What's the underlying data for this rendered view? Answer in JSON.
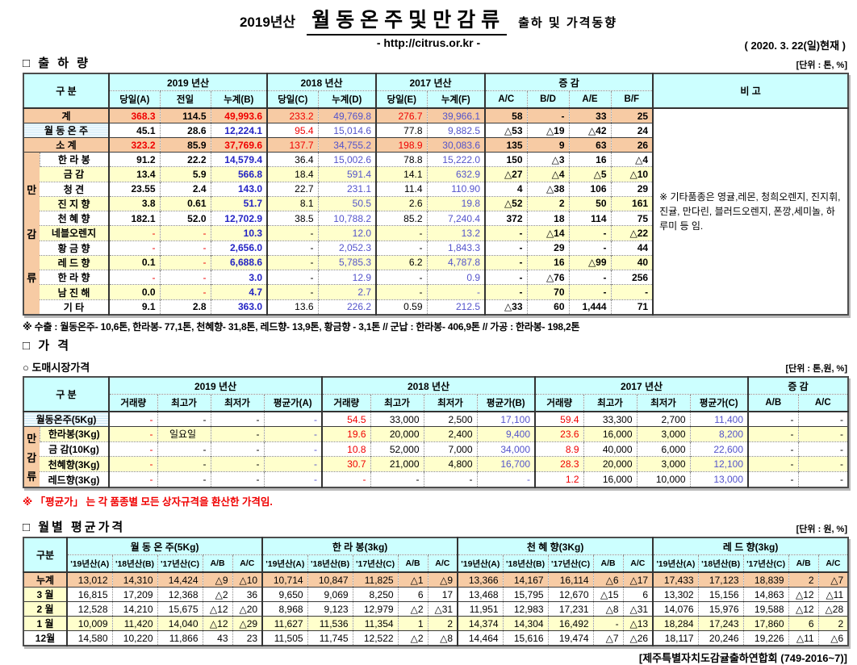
{
  "page": {
    "title_year": "2019년산",
    "title_main": "월동온주및만감류",
    "title_suffix": "출하 및 가격동향",
    "url": "- http://citrus.or.kr -",
    "date": "( 2020. 3. 22(일)현재 )",
    "footer": "[제주특별자치도감귤출하연합회 (749-2016~7)]"
  },
  "sections": {
    "shipment": {
      "title": "□ 출 하 량",
      "unit": "[단위 : 톤, %]"
    },
    "price": {
      "title": "□ 가     격",
      "sub": "○ 도매시장가격",
      "unit": "[단위 : 톤,원, %]",
      "note": "※  「평균가」 는 각 품종별 모든 상자규격을 환산한 가격임."
    },
    "monthly": {
      "title": "□ 월별 평균가격",
      "unit": "[단위 : 원, %]"
    }
  },
  "shipment_note": "※ 수출 : 월동온주- 10,6톤, 한라봉- 77,1톤, 천혜향- 31,8톤, 레드향- 13,9톤, 황금향 - 3,1톤  //  군납 : 한라봉- 406,9톤  //  가공 : 한라봉- 198,2톤",
  "colors": {
    "cyan": "#CCFFFF",
    "sal": "#F7CBA4",
    "yel": "#FFFFCC",
    "patA": "#CBE8F6",
    "patB": "#F2FAFE",
    "red": "#F00000",
    "blue": "#5353CB",
    "blueb": "#2424C4"
  },
  "tables": {
    "shipment": {
      "header": {
        "gubun": "구        분",
        "y2019": "2019 년산",
        "y2018": "2018 년산",
        "y2017": "2017 년산",
        "change": "증        감",
        "remark_title": "비 고",
        "cols": [
          "당일(A)",
          "전일",
          "누계(B)",
          "당일(C)",
          "누계(D)",
          "당일(E)",
          "누계(F)",
          "A/C",
          "B/D",
          "A/E",
          "B/F"
        ]
      },
      "remark": "※ 기타품종은 영귤,레몬, 청희오렌지, 진지휘, 진귤, 만다린, 블러드오렌지, 폰깡,세미놀, 하루미 등 임.",
      "ds": [
        "nb",
        "nb",
        "ub",
        "n",
        "u",
        "n",
        "u",
        "nb",
        "nb",
        "nb",
        "nb"
      ],
      "gs": [
        0,
        3,
        5,
        7
      ],
      "rows": [
        {
          "label": "계",
          "ls": 2,
          "lc": "sal",
          "rc": "sal",
          "tb": "s",
          "remarkSpan": 14,
          "v": [
            "368.3",
            "114.5",
            "49,993.6",
            "233.2",
            "49,769.8",
            "276.7",
            "39,966.1",
            "58",
            "-",
            "33",
            "25"
          ],
          "s": [
            "rb",
            "nb",
            "rb",
            "r",
            "u",
            "r",
            "u",
            "nb",
            "nb",
            "nb",
            "nb"
          ]
        },
        {
          "label": "월 동 온 주",
          "ls": 2,
          "lc": "pat",
          "rc": "wht",
          "tb": "s",
          "v": [
            "45.1",
            "28.6",
            "12,224.1",
            "95.4",
            "15,014.6",
            "77.8",
            "9,882.5",
            "△53",
            "△19",
            "△42",
            "24"
          ],
          "s": [
            "nb",
            "nb",
            "ub",
            "r",
            "u",
            "n",
            "u",
            "nb",
            "nb",
            "nb",
            "nb"
          ]
        },
        {
          "label": "소      계",
          "ls": 2,
          "lc": "sal",
          "rc": "sal",
          "tb": "s",
          "v": [
            "323.2",
            "85.9",
            "37,769.6",
            "137.7",
            "34,755.2",
            "198.9",
            "30,083.6",
            "135",
            "9",
            "63",
            "26"
          ],
          "s": [
            "rb",
            "nb",
            "rb",
            "r",
            "u",
            "r",
            "u",
            "nb",
            "nb",
            "nb",
            "nb"
          ]
        },
        {
          "label": "한 라 봉",
          "rc": "wht",
          "tb": "s",
          "strip": {
            "span": 11,
            "chars": [
              "만",
              "감",
              "류"
            ]
          },
          "v": [
            "91.2",
            "22.2",
            "14,579.4",
            "36.4",
            "15,002.6",
            "78.8",
            "15,222.0",
            "150",
            "△3",
            "16",
            "△4"
          ]
        },
        {
          "label": "금      감",
          "rc": "yel",
          "tb": "d",
          "v": [
            "13.4",
            "5.9",
            "566.8",
            "18.4",
            "591.4",
            "14.1",
            "632.9",
            "△27",
            "△4",
            "△5",
            "△10"
          ]
        },
        {
          "label": "청      견",
          "rc": "wht",
          "tb": "d",
          "v": [
            "23.55",
            "2.4",
            "143.0",
            "22.7",
            "231.1",
            "11.4",
            "110.90",
            "4",
            "△38",
            "106",
            "29"
          ]
        },
        {
          "label": "진 지 향",
          "rc": "yel",
          "tb": "d",
          "v": [
            "3.8",
            "0.61",
            "51.7",
            "8.1",
            "50.5",
            "2.6",
            "19.8",
            "△52",
            "2",
            "50",
            "161"
          ]
        },
        {
          "label": "천 혜 향",
          "rc": "wht",
          "tb": "d",
          "v": [
            "182.1",
            "52.0",
            "12,702.9",
            "38.5",
            "10,788.2",
            "85.2",
            "7,240.4",
            "372",
            "18",
            "114",
            "75"
          ]
        },
        {
          "label": "네블오렌지",
          "rc": "yel",
          "tb": "d",
          "v": [
            "-",
            "-",
            "10.3",
            "-",
            "12.0",
            "-",
            "13.2",
            "-",
            "△14",
            "-",
            "△22"
          ],
          "s": [
            "r",
            "r",
            "ub",
            "n",
            "u",
            "n",
            "u",
            "nb",
            "nb",
            "nb",
            "nb"
          ]
        },
        {
          "label": "황 금 향",
          "rc": "wht",
          "tb": "d",
          "v": [
            "-",
            "-",
            "2,656.0",
            "-",
            "2,052.3",
            "-",
            "1,843.3",
            "-",
            "29",
            "-",
            "44"
          ],
          "s": [
            "r",
            "r",
            "ub",
            "n",
            "u",
            "n",
            "u",
            "nb",
            "nb",
            "nb",
            "nb"
          ]
        },
        {
          "label": "레 드 향",
          "rc": "yel",
          "tb": "d",
          "v": [
            "0.1",
            "-",
            "6,688.6",
            "-",
            "5,785.3",
            "6.2",
            "4,787.8",
            "-",
            "16",
            "△99",
            "40"
          ],
          "s": [
            "nb",
            "r",
            "ub",
            "n",
            "u",
            "n",
            "u",
            "nb",
            "nb",
            "nb",
            "nb"
          ]
        },
        {
          "label": "한 라 향",
          "rc": "wht",
          "tb": "d",
          "v": [
            "-",
            "-",
            "3.0",
            "-",
            "12.9",
            "-",
            "0.9",
            "-",
            "△76",
            "-",
            "256"
          ],
          "s": [
            "r",
            "r",
            "ub",
            "n",
            "u",
            "n",
            "u",
            "nb",
            "nb",
            "nb",
            "nb"
          ]
        },
        {
          "label": "남 진 해",
          "rc": "yel",
          "tb": "d",
          "v": [
            "0.0",
            "-",
            "4.7",
            "-",
            "2.7",
            "-",
            "-",
            "-",
            "70",
            "-",
            "-"
          ],
          "s": [
            "nb",
            "r",
            "ub",
            "n",
            "u",
            "n",
            "u",
            "nb",
            "nb",
            "nb",
            "nb"
          ]
        },
        {
          "label": "기      타",
          "rc": "wht",
          "tb": "d",
          "v": [
            "9.1",
            "2.8",
            "363.0",
            "13.6",
            "226.2",
            "0.59",
            "212.5",
            "△33",
            "60",
            "1,444",
            "71"
          ]
        }
      ]
    },
    "wholesale": {
      "header": {
        "gubun": "구        분",
        "y2019": "2019 년산",
        "y2018": "2018 년산",
        "y2017": "2017 년산",
        "change": "증   감",
        "cols2019": [
          "거래량",
          "최고가",
          "최저가",
          "평균가(A)"
        ],
        "cols2018": [
          "거래량",
          "최고가",
          "최저가",
          "평균가(B)"
        ],
        "cols2017": [
          "거래량",
          "최고가",
          "최저가",
          "평균가(C)"
        ],
        "chg": [
          "A/B",
          "A/C"
        ]
      },
      "ds": [
        "r",
        "n",
        "n",
        "u",
        "r",
        "n",
        "n",
        "u",
        "r",
        "n",
        "n",
        "u",
        "n",
        "n"
      ],
      "gs": [
        0,
        4,
        8,
        12
      ],
      "rows": [
        {
          "label": "월동온주(5Kg)",
          "ls": 2,
          "lc": "pat",
          "rc": "wht",
          "tb": "s",
          "v": [
            "-",
            "-",
            "-",
            "-",
            "54.5",
            "33,000",
            "2,500",
            "17,100",
            "59.4",
            "33,300",
            "2,700",
            "11,400",
            "-",
            "-"
          ]
        },
        {
          "label": "한라봉(3Kg)",
          "rc": "yel",
          "tb": "s",
          "strip": {
            "span": 4,
            "chars": [
              "만",
              "감",
              "류"
            ]
          },
          "v": [
            "-",
            "일요일",
            "-",
            "-",
            "19.6",
            "20,000",
            "2,400",
            "9,400",
            "23.6",
            "16,000",
            "3,000",
            "8,200",
            "-",
            "-"
          ],
          "s": {
            "1": "nc"
          }
        },
        {
          "label": "금  감(10Kg)",
          "rc": "wht",
          "tb": "d",
          "v": [
            "-",
            "-",
            "-",
            "-",
            "10.8",
            "52,000",
            "7,000",
            "34,000",
            "8.9",
            "40,000",
            "6,000",
            "22,600",
            "-",
            "-"
          ]
        },
        {
          "label": "천혜향(3Kg)",
          "rc": "yel",
          "tb": "d",
          "v": [
            "-",
            "-",
            "-",
            "-",
            "30.7",
            "21,000",
            "4,800",
            "16,700",
            "28.3",
            "20,000",
            "3,000",
            "12,100",
            "-",
            "-"
          ]
        },
        {
          "label": "레드향(3Kg)",
          "rc": "wht",
          "tb": "d",
          "v": [
            "-",
            "-",
            "-",
            "-",
            "-",
            "-",
            "-",
            "-",
            "1.2",
            "16,000",
            "10,000",
            "13,000",
            "-",
            "-"
          ]
        }
      ]
    },
    "monthly": {
      "header": {
        "gubun": "구분",
        "groups": [
          "월 동 온 주(5Kg)",
          "한  라  봉(3kg)",
          "천 혜 향(3Kg)",
          "레 드 향(3kg)"
        ],
        "cols": [
          "'19년산(A)",
          "'18년산(B)",
          "'17년산(C)",
          "A/B",
          "A/C"
        ]
      },
      "gs": [
        0,
        5,
        10,
        15
      ],
      "rows": [
        {
          "label": "누계",
          "lc": "sal",
          "rc": "sal",
          "tb": "s",
          "v": [
            "13,012",
            "14,310",
            "14,424",
            "△9",
            "△10",
            "10,714",
            "10,847",
            "11,825",
            "△1",
            "△9",
            "13,366",
            "14,167",
            "16,114",
            "△6",
            "△17",
            "17,433",
            "17,123",
            "18,839",
            "2",
            "△7"
          ]
        },
        {
          "label": "3 월",
          "lc": "yel",
          "rc": "wht",
          "tb": "s",
          "v": [
            "16,815",
            "17,209",
            "12,368",
            "△2",
            "36",
            "9,650",
            "9,069",
            "8,250",
            "6",
            "17",
            "13,468",
            "15,795",
            "12,670",
            "△15",
            "6",
            "13,302",
            "15,156",
            "14,863",
            "△12",
            "△11"
          ]
        },
        {
          "label": "2 월",
          "lc": "yel",
          "rc": "wht",
          "tb": "s",
          "v": [
            "12,528",
            "14,210",
            "15,675",
            "△12",
            "△20",
            "8,968",
            "9,123",
            "12,979",
            "△2",
            "△31",
            "11,951",
            "12,983",
            "17,231",
            "△8",
            "△31",
            "14,076",
            "15,976",
            "19,588",
            "△12",
            "△28"
          ]
        },
        {
          "label": "1 월",
          "lc": "yel",
          "rc": "yel",
          "tb": "s",
          "v": [
            "10,009",
            "11,420",
            "14,040",
            "△12",
            "△29",
            "11,627",
            "11,536",
            "11,354",
            "1",
            "2",
            "14,374",
            "14,304",
            "16,492",
            "-",
            "△13",
            "18,284",
            "17,243",
            "17,860",
            "6",
            "2"
          ]
        },
        {
          "label": "12월",
          "lc": "wht",
          "rc": "wht",
          "tb": "s",
          "v": [
            "14,580",
            "10,220",
            "11,866",
            "43",
            "23",
            "11,505",
            "11,745",
            "12,522",
            "△2",
            "△8",
            "14,464",
            "15,616",
            "19,474",
            "△7",
            "△26",
            "18,117",
            "20,246",
            "19,226",
            "△11",
            "△6"
          ]
        }
      ]
    }
  }
}
